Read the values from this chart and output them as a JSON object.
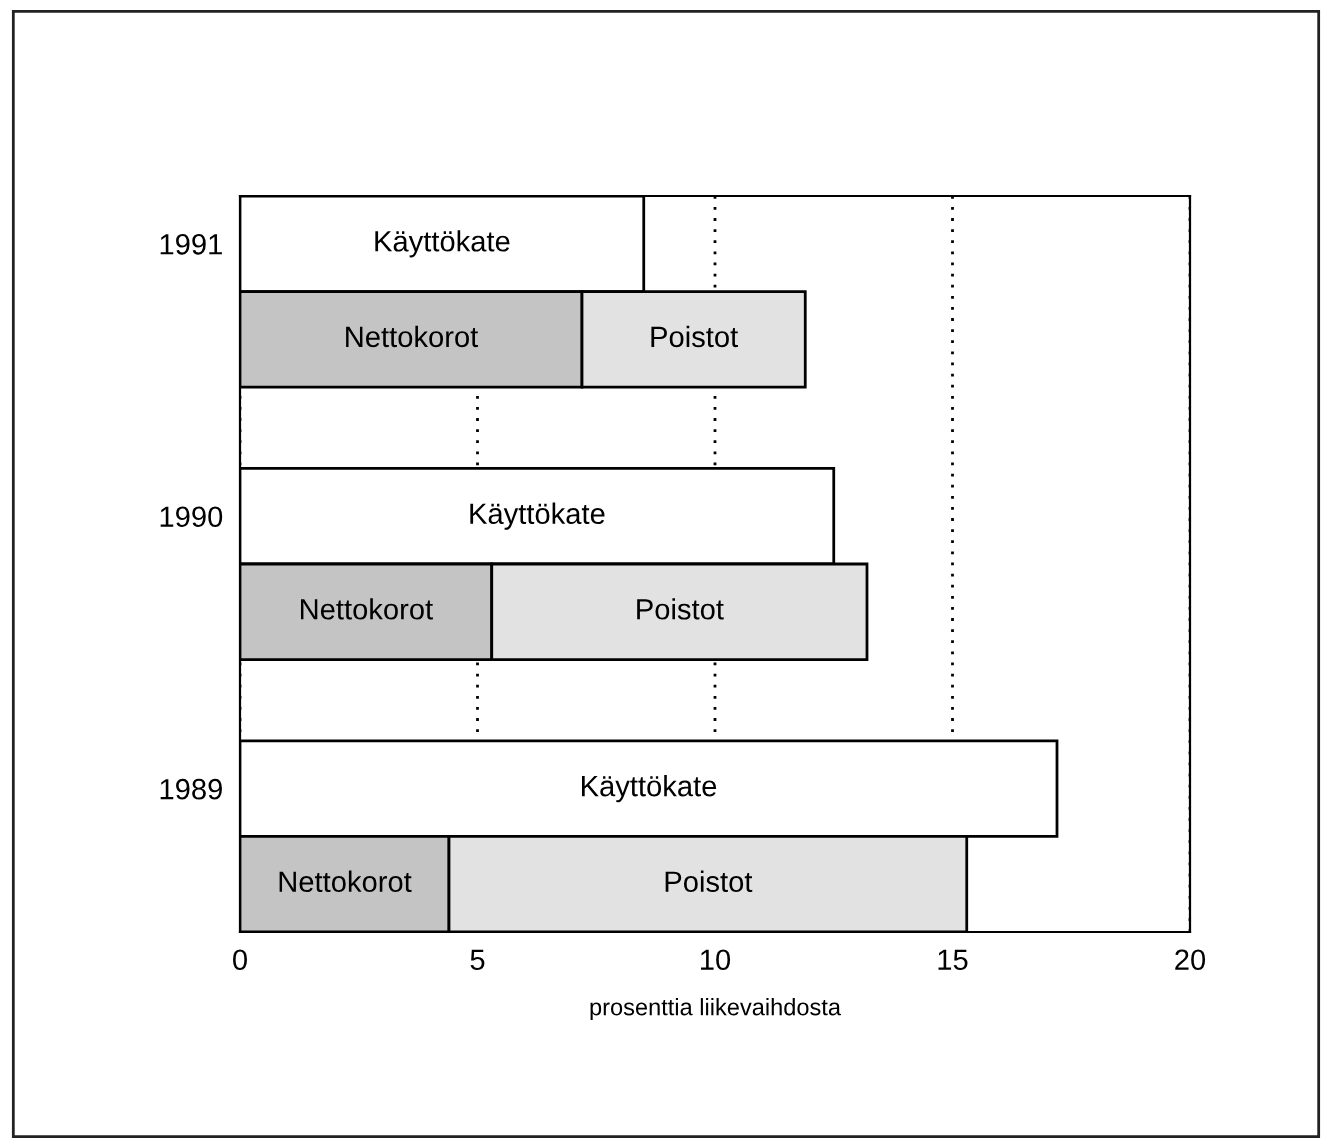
{
  "chart_data": {
    "type": "bar",
    "orientation": "horizontal",
    "stacked": true,
    "xlabel": "prosenttia liikevaihdosta",
    "categories": [
      "1991",
      null,
      "1990",
      null,
      "1989",
      null
    ],
    "series": [
      {
        "name": "Käyttökate",
        "color": "#ffffff",
        "values": [
          8.5,
          null,
          12.5,
          null,
          17.2,
          null
        ]
      },
      {
        "name": "Nettokorot",
        "color": "#c4c4c4",
        "values": [
          null,
          7.2,
          null,
          5.3,
          null,
          4.4
        ]
      },
      {
        "name": "Poistot",
        "color": "#e2e2e2",
        "values": [
          null,
          4.7,
          null,
          7.9,
          null,
          10.9
        ]
      }
    ],
    "xlim": [
      0,
      20
    ],
    "xticks": [
      0,
      5,
      10,
      15,
      20
    ],
    "grid": "x",
    "legend": false
  }
}
